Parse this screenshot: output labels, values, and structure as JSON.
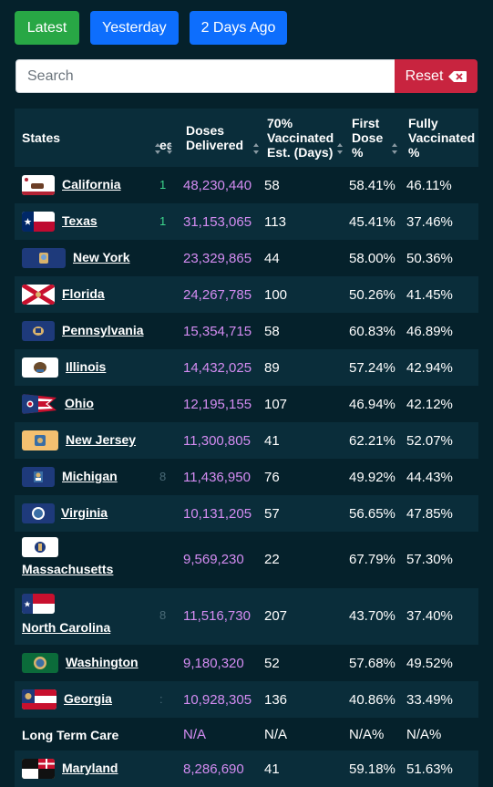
{
  "buttons": {
    "latest": "Latest",
    "yesterday": "Yesterday",
    "two_days": "2 Days Ago"
  },
  "search": {
    "placeholder": "Search",
    "reset": "Reset"
  },
  "table": {
    "headers": {
      "states": "States",
      "clipped": "ed",
      "doses_1": "Doses",
      "doses_2": "Delivered",
      "est_1": "70%",
      "est_2": "Vaccinated",
      "est_3": "Est. (Days)",
      "first_1": "First",
      "first_2": "Dose",
      "first_3": "%",
      "fully_1": "Fully",
      "fully_2": "Vaccinated",
      "fully_3": "%"
    },
    "rows": [
      {
        "state": "California",
        "stub": "1",
        "doses": "48,230,440",
        "est": "58",
        "first": "58.41%",
        "fully": "46.11%"
      },
      {
        "state": "Texas",
        "stub": "1",
        "doses": "31,153,065",
        "est": "113",
        "first": "45.41%",
        "fully": "37.46%"
      },
      {
        "state": "New York",
        "stub": "",
        "doses": "23,329,865",
        "est": "44",
        "first": "58.00%",
        "fully": "50.36%"
      },
      {
        "state": "Florida",
        "stub": "",
        "doses": "24,267,785",
        "est": "100",
        "first": "50.26%",
        "fully": "41.45%"
      },
      {
        "state": "Pennsylvania",
        "stub": "",
        "doses": "15,354,715",
        "est": "58",
        "first": "60.83%",
        "fully": "46.89%"
      },
      {
        "state": "Illinois",
        "stub": "",
        "doses": "14,432,025",
        "est": "89",
        "first": "57.24%",
        "fully": "42.94%"
      },
      {
        "state": "Ohio",
        "stub": "",
        "doses": "12,195,155",
        "est": "107",
        "first": "46.94%",
        "fully": "42.12%"
      },
      {
        "state": "New Jersey",
        "stub": "",
        "doses": "11,300,805",
        "est": "41",
        "first": "62.21%",
        "fully": "52.07%"
      },
      {
        "state": "Michigan",
        "stub": "8",
        "doses": "11,436,950",
        "est": "76",
        "first": "49.92%",
        "fully": "44.43%"
      },
      {
        "state": "Virginia",
        "stub": "",
        "doses": "10,131,205",
        "est": "57",
        "first": "56.65%",
        "fully": "47.85%"
      },
      {
        "state": "Massachusetts",
        "stub": "",
        "doses": "9,569,230",
        "est": "22",
        "first": "67.79%",
        "fully": "57.30%"
      },
      {
        "state": "North Carolina",
        "stub": "8",
        "doses": "11,516,730",
        "est": "207",
        "first": "43.70%",
        "fully": "37.40%"
      },
      {
        "state": "Washington",
        "stub": "",
        "doses": "9,180,320",
        "est": "52",
        "first": "57.68%",
        "fully": "49.52%"
      },
      {
        "state": "Georgia",
        "stub": ":",
        "doses": "10,928,305",
        "est": "136",
        "first": "40.86%",
        "fully": "33.49%"
      },
      {
        "state": "Long Term Care",
        "stub": "",
        "doses": "N/A",
        "est": "N/A",
        "first": "N/A%",
        "fully": "N/A%"
      },
      {
        "state": "Maryland",
        "stub": "",
        "doses": "8,286,690",
        "est": "41",
        "first": "59.18%",
        "fully": "51.63%"
      }
    ]
  },
  "colors": {
    "background": "#05212b",
    "alt_row": "#0a2d3a",
    "doses": "#d48cf2",
    "green": "#28a745",
    "blue": "#0d6efd",
    "reset": "#c8243f"
  }
}
